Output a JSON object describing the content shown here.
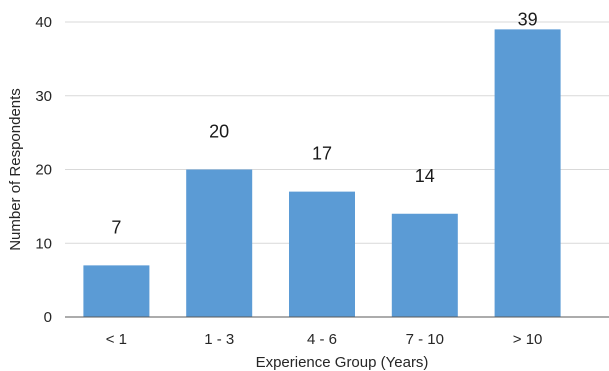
{
  "chart_data": {
    "type": "bar",
    "categories": [
      "< 1",
      "1 - 3",
      "4 - 6",
      "7 - 10",
      "> 10"
    ],
    "values": [
      7,
      20,
      17,
      14,
      39
    ],
    "xlabel": "Experience Group (Years)",
    "ylabel": "Number of Respondents",
    "ylim": [
      0,
      40
    ],
    "yticks": [
      0,
      10,
      20,
      30,
      40
    ],
    "grid": true,
    "data_labels": true,
    "bar_color": "#5b9bd5"
  }
}
